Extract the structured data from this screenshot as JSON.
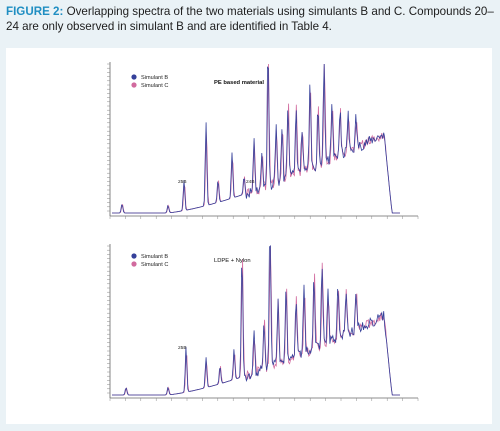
{
  "caption": {
    "label": "FIGURE 2:",
    "text": " Overlapping spectra of the two materials using simulants B and C. Compounds 20–24 are only observed in simulant B and are identified in Table 4."
  },
  "colors": {
    "background": "#eaf2f6",
    "label_accent": "#1f8ec2",
    "simulant_b": "#35409a",
    "simulant_c": "#d16a9e"
  },
  "chart_data": [
    {
      "type": "line",
      "title": "PE based material",
      "legend": [
        "Simulant B",
        "Simulant C"
      ],
      "legend_position": "top-left",
      "annotations": [
        "25B",
        "24B"
      ],
      "series": [
        {
          "name": "Simulant B"
        },
        {
          "name": "Simulant C"
        }
      ]
    },
    {
      "type": "line",
      "title": "LDPE + Nylon",
      "legend": [
        "Simulant B",
        "Simulant C"
      ],
      "legend_position": "top-left",
      "annotations": [
        "25B"
      ],
      "series": [
        {
          "name": "Simulant B"
        },
        {
          "name": "Simulant C"
        }
      ]
    }
  ]
}
